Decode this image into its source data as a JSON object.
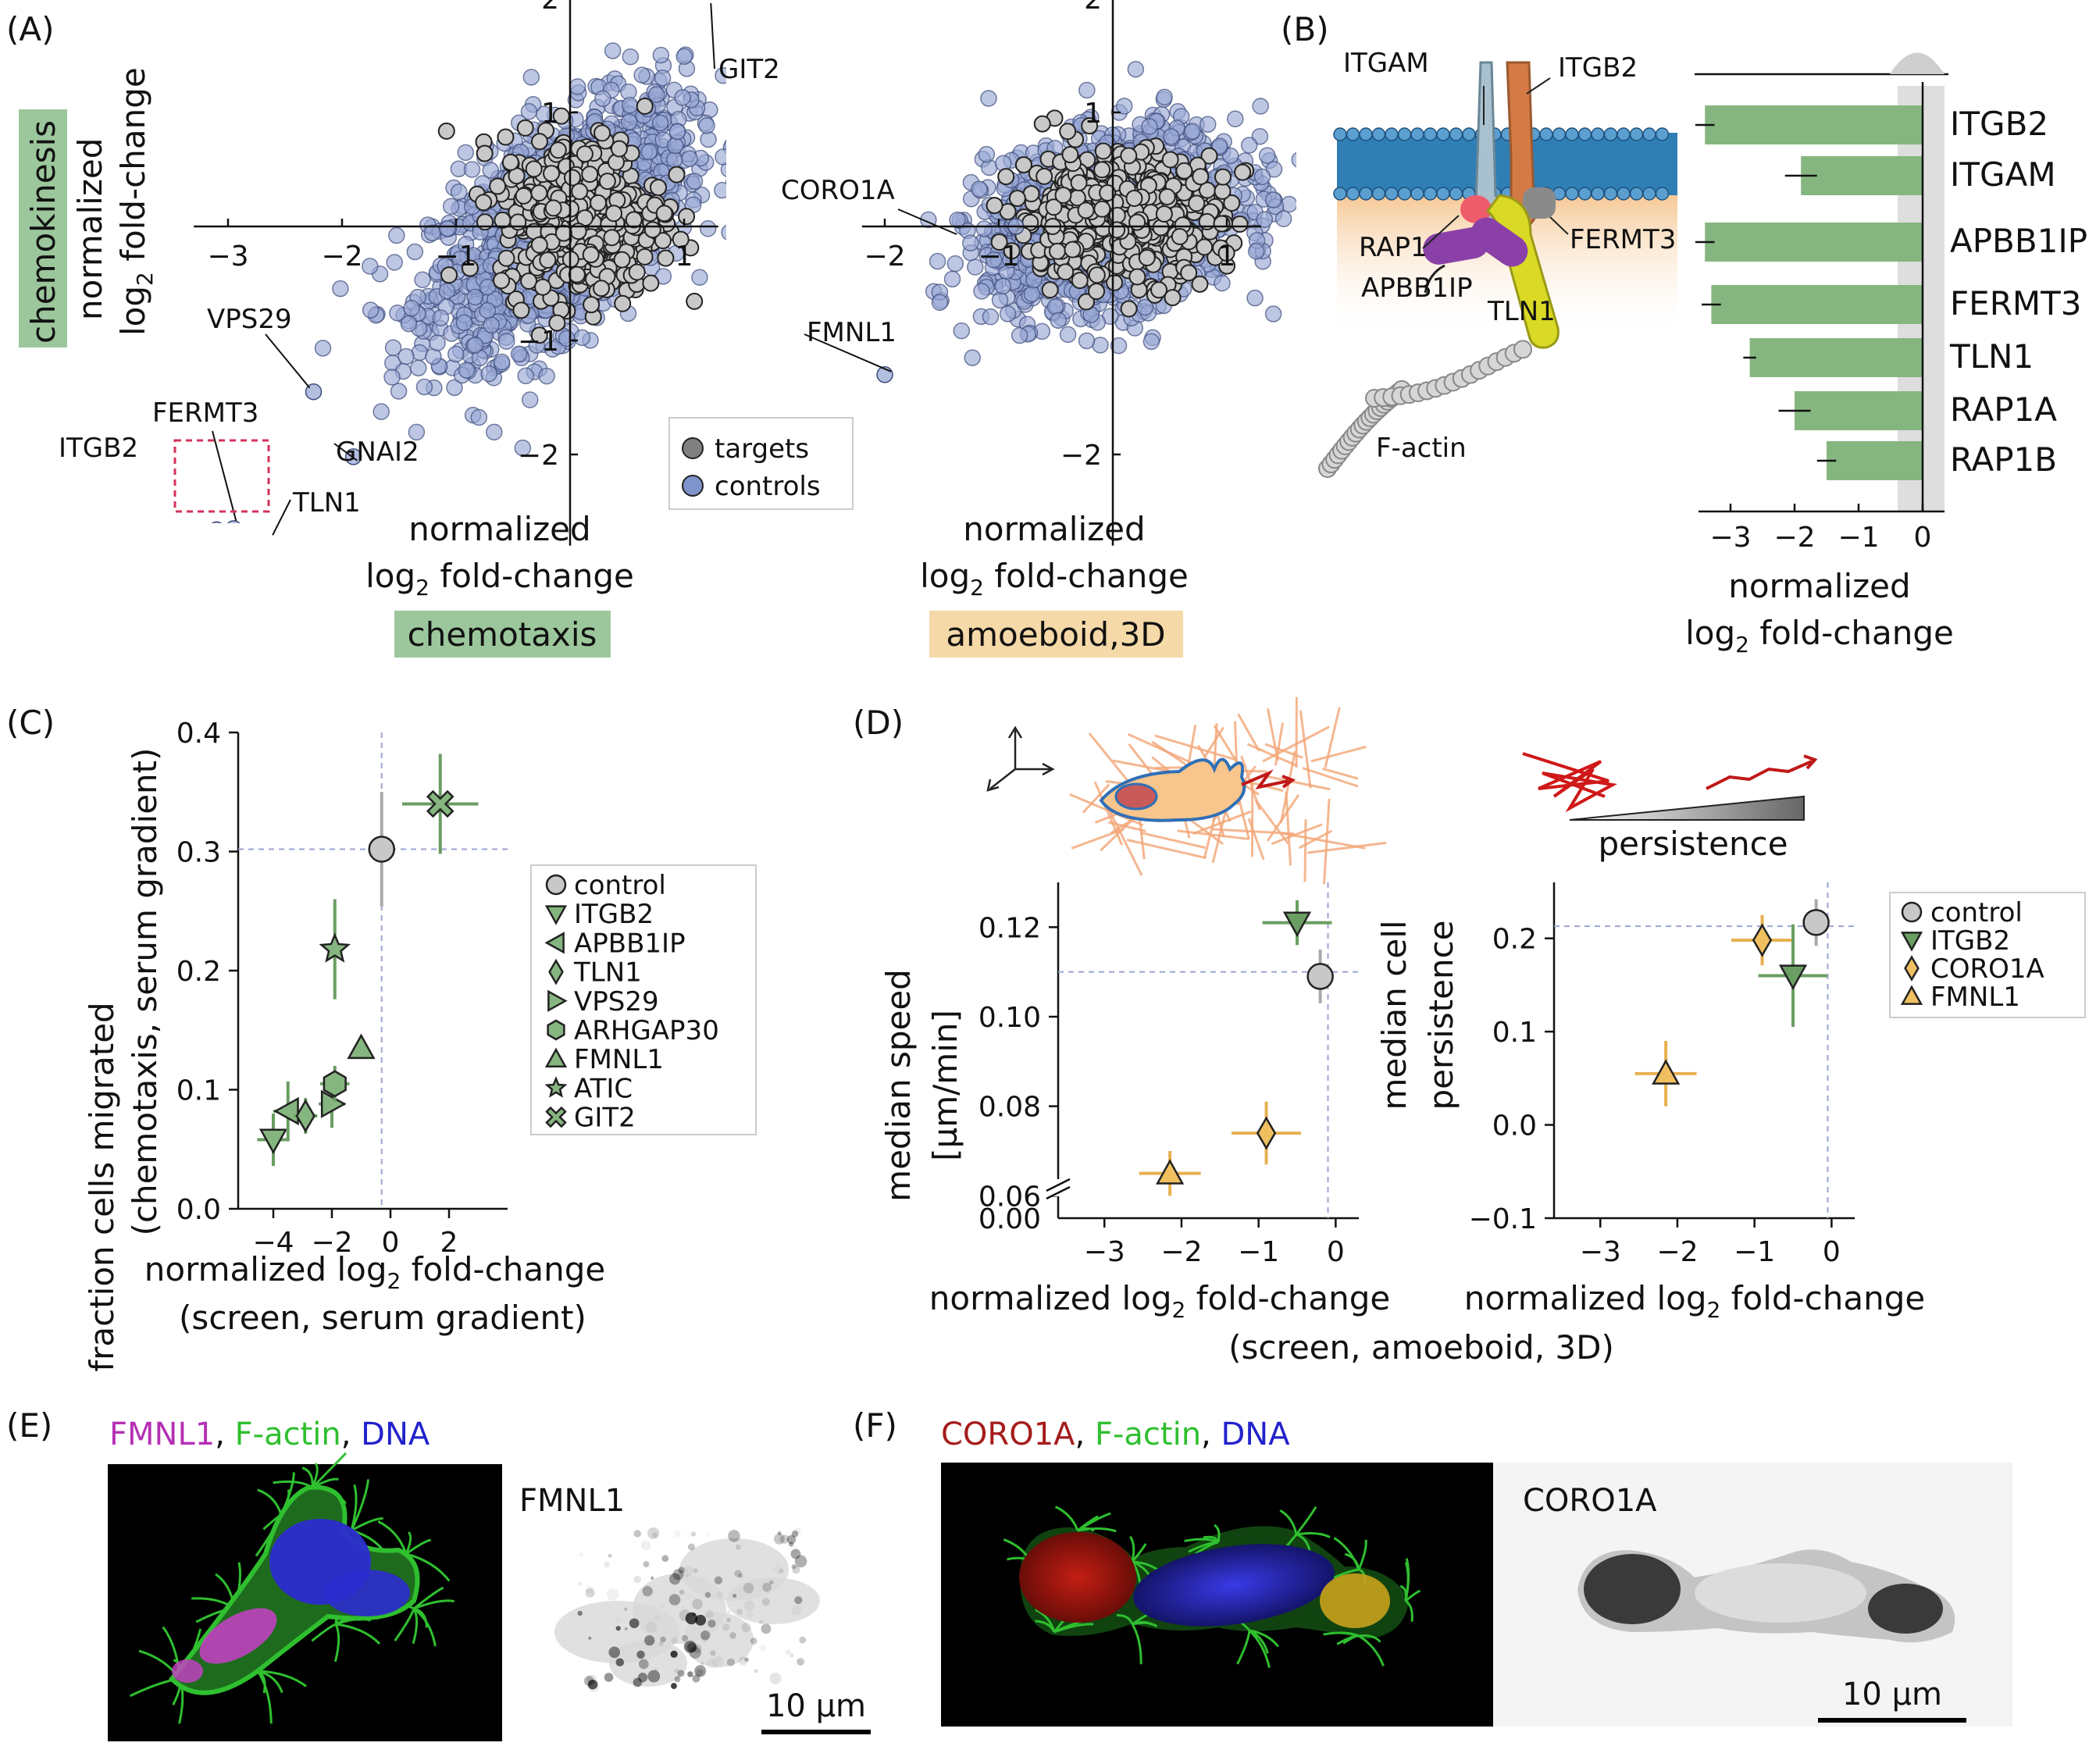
{
  "panels": {
    "A": "(A)",
    "B": "(B)",
    "C": "(C)",
    "D": "(D)",
    "E": "(E)",
    "F": "(F)"
  },
  "panel_a": {
    "ylabel_line1": "normalized",
    "ylabel_line2": "log",
    "ylabel_sub": "2",
    "ylabel_line2b": " fold-change",
    "side_tag": "chemokinesis",
    "xlabel_line1": "normalized",
    "xlabel_line2": "log",
    "xlabel_sub": "2",
    "xlabel_line2b": " fold-change",
    "tag_left": "chemotaxis",
    "tag_right": "amoeboid,3D",
    "legend": [
      "targets",
      "controls"
    ],
    "left_labels": [
      "GIT2",
      "VPS29",
      "FERMT3",
      "ITGB2",
      "GNAI2",
      "TLN1"
    ],
    "right_labels": [
      "CORO1A",
      "FMNL1"
    ],
    "colors": {
      "targets": "#c8c8c8",
      "controls": "#9aa9d6",
      "tag_green": "#9cc79c",
      "tag_orange": "#f5d9a8",
      "highlight_box": "#d6315a"
    }
  },
  "panel_b": {
    "membrane_labels": [
      "ITGAM",
      "ITGB2",
      "RAP1",
      "FERMT3",
      "APBB1IP",
      "TLN1",
      "F-actin"
    ],
    "xlabel_line1": "normalized",
    "xlabel_line2": "log",
    "xlabel_sub": "2",
    "xlabel_line2b": " fold-change",
    "colors": {
      "bar": "#86b67f",
      "membrane": "#2f7fb5"
    }
  },
  "panel_c": {
    "ylabel_line1": "fraction cells migrated",
    "ylabel_line2": "(chemotaxis, serum gradient)",
    "xlabel_line1": "normalized log",
    "xlabel_sub": "2",
    "xlabel_line1b": " fold-change",
    "xlabel_line2": "(screen, serum gradient)",
    "legend": [
      "control",
      "ITGB2",
      "APBB1IP",
      "TLN1",
      "VPS29",
      "ARHGAP30",
      "FMNL1",
      "ATIC",
      "GIT2"
    ]
  },
  "panel_d": {
    "persistence_label": "persistence",
    "left_ylabel_line1": "median speed",
    "left_ylabel_line2": "[µm/min]",
    "right_ylabel_line1": "median cell",
    "right_ylabel_line2": "persistence",
    "xlabel_left_1": "normalized log",
    "xlabel_left_sub": "2",
    "xlabel_left_1b": " fold-change",
    "xlabel_right_1": "normalized log",
    "xlabel_right_sub": "2",
    "xlabel_right_1b": " fold-change",
    "xlabel_shared": "(screen, amoeboid, 3D)",
    "legend": [
      "control",
      "ITGB2",
      "CORO1A",
      "FMNL1"
    ]
  },
  "panel_e": {
    "title_parts": [
      "FMNL1",
      ", ",
      "F-actin",
      ", ",
      "DNA"
    ],
    "gray_label": "FMNL1",
    "scalebar": "10 µm",
    "colors": {
      "magenta": "#b530b5",
      "green": "#2fbf2f",
      "blue": "#2222cc"
    }
  },
  "panel_f": {
    "title_parts": [
      "CORO1A",
      ", ",
      "F-actin",
      ", ",
      "DNA"
    ],
    "gray_label": "CORO1A",
    "scalebar": "10 µm",
    "colors": {
      "red": "#a51c1c",
      "green": "#2fbf2f",
      "blue": "#2222cc"
    }
  },
  "chart_data": [
    {
      "id": "A-left",
      "type": "scatter",
      "xlabel": "normalized log2 fold-change",
      "ylabel": "normalized log2 fold-change",
      "xlim": [
        -3.3,
        1.3
      ],
      "ylim": [
        -2.8,
        2.1
      ],
      "xticks": [
        -3,
        -2,
        -1,
        1
      ],
      "yticks": [
        -2,
        -1,
        1,
        2
      ],
      "xtick_labels": [
        "−3",
        "−2",
        "−1",
        "1"
      ],
      "ytick_labels": [
        "−2",
        "−1",
        "1",
        "2"
      ],
      "series": [
        {
          "name": "targets",
          "center": [
            0.1,
            0.1
          ],
          "spread": [
            0.35,
            0.35
          ],
          "n": 500
        },
        {
          "name": "controls",
          "center": [
            -0.1,
            0.0
          ],
          "spread": [
            0.55,
            0.55
          ],
          "n": 1600
        }
      ],
      "labeled_points": [
        {
          "label": "GIT2",
          "x": 1.18,
          "y": 2.0
        },
        {
          "label": "VPS29",
          "x": -2.25,
          "y": -1.45
        },
        {
          "label": "FERMT3",
          "x": -2.95,
          "y": -2.65
        },
        {
          "label": "ITGB2",
          "x": -3.1,
          "y": -2.66
        },
        {
          "label": "GNAI2",
          "x": -1.9,
          "y": -2.02
        },
        {
          "label": "TLN1",
          "x": -2.65,
          "y": -2.68
        }
      ]
    },
    {
      "id": "A-right",
      "type": "scatter",
      "xlabel": "normalized log2 fold-change",
      "xlim": [
        -2.2,
        1.3
      ],
      "ylim": [
        -2.8,
        2.1
      ],
      "xticks": [
        -2,
        -1,
        1
      ],
      "yticks": [
        -2,
        1,
        2
      ],
      "xtick_labels": [
        "−2",
        "−1",
        "1"
      ],
      "ytick_labels": [
        "−2",
        "1",
        "2"
      ],
      "series": [
        {
          "name": "targets",
          "center": [
            0.05,
            0.1
          ],
          "spread": [
            0.45,
            0.28
          ],
          "n": 500
        },
        {
          "name": "controls",
          "center": [
            0.0,
            0.05
          ],
          "spread": [
            0.55,
            0.45
          ],
          "n": 1600
        }
      ],
      "labeled_points": [
        {
          "label": "CORO1A",
          "x": -0.85,
          "y": 0.0
        },
        {
          "label": "FMNL1",
          "x": -2.0,
          "y": -1.3
        }
      ]
    },
    {
      "id": "B",
      "type": "bar",
      "orientation": "horizontal",
      "categories": [
        "ITGB2",
        "ITGAM",
        "APBB1IP",
        "FERMT3",
        "TLN1",
        "RAP1A",
        "RAP1B"
      ],
      "values": [
        -3.4,
        -1.9,
        -3.4,
        -3.3,
        -2.7,
        -2.0,
        -1.5
      ],
      "errors": [
        0.15,
        0.25,
        0.15,
        0.15,
        0.1,
        0.25,
        0.15
      ],
      "xlim": [
        -3.6,
        0.4
      ],
      "xticks": [
        -3,
        -2,
        -1,
        0
      ],
      "xtick_labels": [
        "−3",
        "−2",
        "−1",
        "0"
      ]
    },
    {
      "id": "C",
      "type": "scatter",
      "xlabel": "normalized log2 fold-change (screen, serum gradient)",
      "ylabel": "fraction cells migrated (chemotaxis, serum gradient)",
      "xlim": [
        -5.2,
        4.0
      ],
      "ylim": [
        0.0,
        0.4
      ],
      "xticks": [
        -4,
        -2,
        0,
        2
      ],
      "xtick_labels": [
        "−4",
        "−2",
        "0",
        "2"
      ],
      "yticks": [
        0.0,
        0.1,
        0.2,
        0.3,
        0.4
      ],
      "ytick_labels": [
        "0.0",
        "0.1",
        "0.2",
        "0.3",
        "0.4"
      ],
      "ref_x": -0.3,
      "ref_y": 0.302,
      "points": [
        {
          "name": "control",
          "x": -0.3,
          "y": 0.302,
          "xerr": 0.0,
          "yerr": 0.048,
          "marker": "circle"
        },
        {
          "name": "ITGB2",
          "x": -4.0,
          "y": 0.058,
          "xerr": 0.55,
          "yerr": 0.022,
          "marker": "tri-down"
        },
        {
          "name": "APBB1IP",
          "x": -3.5,
          "y": 0.082,
          "xerr": 0.5,
          "yerr": 0.025,
          "marker": "tri-left"
        },
        {
          "name": "TLN1",
          "x": -2.9,
          "y": 0.078,
          "xerr": 0.4,
          "yerr": 0.015,
          "marker": "diamond"
        },
        {
          "name": "VPS29",
          "x": -2.0,
          "y": 0.088,
          "xerr": 0.45,
          "yerr": 0.02,
          "marker": "tri-right"
        },
        {
          "name": "ARHGAP30",
          "x": -1.9,
          "y": 0.105,
          "xerr": 0.5,
          "yerr": 0.015,
          "marker": "hexagon"
        },
        {
          "name": "FMNL1",
          "x": -1.0,
          "y": 0.135,
          "xerr": 0.0,
          "yerr": 0.0,
          "marker": "tri-up"
        },
        {
          "name": "ATIC",
          "x": -1.9,
          "y": 0.218,
          "xerr": 0.0,
          "yerr": 0.042,
          "marker": "star"
        },
        {
          "name": "GIT2",
          "x": 1.7,
          "y": 0.34,
          "xerr": 1.3,
          "yerr": 0.042,
          "marker": "cross"
        }
      ]
    },
    {
      "id": "D-left",
      "type": "scatter",
      "xlabel": "normalized log2 fold-change",
      "ylabel": "median speed [µm/min]",
      "xlim": [
        -3.6,
        0.3
      ],
      "ylim": [
        0.055,
        0.13
      ],
      "xticks": [
        -3,
        -2,
        -1,
        0
      ],
      "xtick_labels": [
        "−3",
        "−2",
        "−1",
        "0"
      ],
      "yticks": [
        0.06,
        0.08,
        0.1,
        0.12
      ],
      "ytick_labels": [
        "0.06",
        "0.08",
        "0.10",
        "0.12"
      ],
      "axis_break_label": "0.00",
      "ref_x": -0.1,
      "ref_y": 0.11,
      "points": [
        {
          "name": "ITGB2",
          "x": -0.5,
          "y": 0.121,
          "xerr": 0.45,
          "yerr": 0.005,
          "marker": "tri-down"
        },
        {
          "name": "control",
          "x": -0.2,
          "y": 0.109,
          "xerr": 0.0,
          "yerr": 0.006,
          "marker": "circle"
        },
        {
          "name": "CORO1A",
          "x": -0.9,
          "y": 0.074,
          "xerr": 0.45,
          "yerr": 0.007,
          "marker": "diamond"
        },
        {
          "name": "FMNL1",
          "x": -2.15,
          "y": 0.065,
          "xerr": 0.4,
          "yerr": 0.005,
          "marker": "tri-up"
        }
      ]
    },
    {
      "id": "D-right",
      "type": "scatter",
      "xlabel": "normalized log2 fold-change",
      "ylabel": "median cell persistence",
      "xlim": [
        -3.6,
        0.3
      ],
      "ylim": [
        -0.1,
        0.26
      ],
      "xticks": [
        -3,
        -2,
        -1,
        0
      ],
      "xtick_labels": [
        "−3",
        "−2",
        "−1",
        "0"
      ],
      "yticks": [
        -0.1,
        0.0,
        0.1,
        0.2
      ],
      "ytick_labels": [
        "−0.1",
        "0.0",
        "0.1",
        "0.2"
      ],
      "ref_x": -0.05,
      "ref_y": 0.213,
      "points": [
        {
          "name": "control",
          "x": -0.2,
          "y": 0.217,
          "xerr": 0.0,
          "yerr": 0.025,
          "marker": "circle"
        },
        {
          "name": "CORO1A",
          "x": -0.9,
          "y": 0.198,
          "xerr": 0.4,
          "yerr": 0.027,
          "marker": "diamond"
        },
        {
          "name": "ITGB2",
          "x": -0.5,
          "y": 0.16,
          "xerr": 0.45,
          "yerr": 0.055,
          "marker": "tri-down"
        },
        {
          "name": "FMNL1",
          "x": -2.15,
          "y": 0.055,
          "xerr": 0.4,
          "yerr": 0.035,
          "marker": "tri-up"
        }
      ]
    }
  ]
}
